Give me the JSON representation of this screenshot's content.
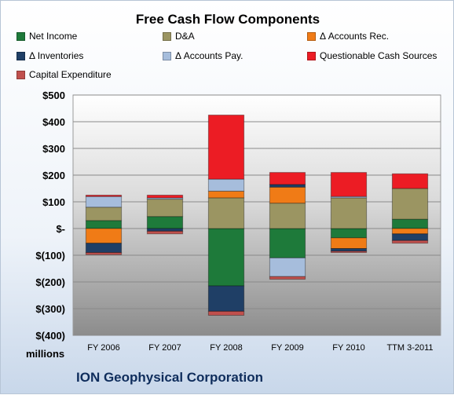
{
  "title": "Free Cash Flow Components",
  "company": "ION Geophysical Corporation",
  "units_label": "millions",
  "colors": {
    "Net Income": "#1e7a3a",
    "D&A": "#9b9562",
    "Δ Accounts Rec.": "#f07b16",
    "Δ Inventories": "#1f3f66",
    "Δ Accounts Pay.": "#a6bddc",
    "Questionable Cash Sources": "#ec1c24",
    "Capital Expenditure": "#c0504d"
  },
  "chart_data": {
    "type": "bar",
    "stacked": true,
    "title": "Free Cash Flow Components",
    "xlabel": "",
    "ylabel": "millions",
    "ylim": [
      -400,
      500
    ],
    "yticks": [
      500,
      400,
      300,
      200,
      100,
      0,
      -100,
      -200,
      -300,
      -400
    ],
    "ytick_labels": [
      "$500",
      "$400",
      "$300",
      "$200",
      "$100",
      "$-",
      "$(100)",
      "$(200)",
      "$(300)",
      "$(400)"
    ],
    "grid": true,
    "legend": "top",
    "categories": [
      "FY 2006",
      "FY 2007",
      "FY 2008",
      "FY 2009",
      "FY 2010",
      "TTM 3-2011"
    ],
    "series": [
      {
        "name": "Net Income",
        "values": [
          30,
          45,
          -215,
          -110,
          -35,
          35
        ]
      },
      {
        "name": "D&A",
        "values": [
          50,
          65,
          115,
          95,
          115,
          115
        ]
      },
      {
        "name": "Δ Accounts Rec.",
        "values": [
          -55,
          0,
          25,
          60,
          -40,
          -20
        ]
      },
      {
        "name": "Δ Inventories",
        "values": [
          -35,
          -10,
          -95,
          10,
          -10,
          -25
        ]
      },
      {
        "name": "Δ Accounts Pay.",
        "values": [
          40,
          5,
          45,
          -70,
          5,
          0
        ]
      },
      {
        "name": "Questionable Cash Sources",
        "values": [
          5,
          10,
          240,
          45,
          90,
          55
        ]
      },
      {
        "name": "Capital Expenditure",
        "values": [
          -8,
          -10,
          -15,
          -10,
          -5,
          -10
        ]
      }
    ]
  }
}
